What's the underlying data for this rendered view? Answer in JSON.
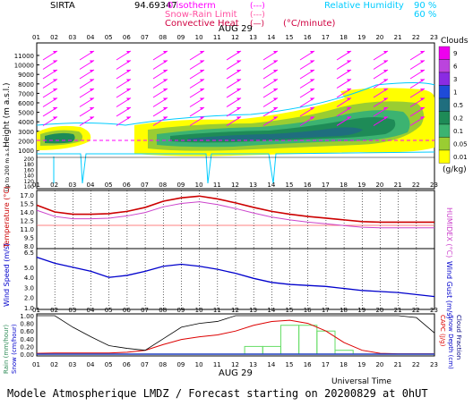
{
  "header": {
    "site": "SIRTA",
    "coords": "94.69347",
    "isotherm_label": "0 isotherm",
    "snow_rain_label": "Snow-Rain Limit",
    "convective_label": "Convective Heat",
    "convective_unit": "(°C/minute)",
    "rh_label": "Relative Humidity",
    "rh_90": "90 %",
    "rh_60": "60 %",
    "dash_mark": "(---)",
    "solid_mark": "(—)"
  },
  "colors": {
    "isotherm": "#ff00ff",
    "snow_rain": "#ff4fa0",
    "convective": "#d00040",
    "rh": "#00ccff",
    "temperature": "#cc0000",
    "humidex": "#cc44cc",
    "wind": "#0000cc",
    "rain": "#2e8b57",
    "capc": "#dd0000",
    "cloud_fraction": "#000080"
  },
  "hour_labels": [
    "01",
    "02",
    "03",
    "04",
    "05",
    "06",
    "07",
    "08",
    "09",
    "10",
    "11",
    "12",
    "13",
    "14",
    "15",
    "16",
    "17",
    "18",
    "19",
    "20",
    "21",
    "22",
    "23"
  ],
  "date_label": "AUG 29",
  "cloud_legend": {
    "title": "Clouds",
    "unit": "(g/kg)",
    "levels": [
      "9",
      "6",
      "3",
      "1",
      "0.5",
      "0.2",
      "0.1",
      "0.05",
      "0.01"
    ],
    "colors": [
      "#ee00ee",
      "#bb44dd",
      "#8a2be2",
      "#1e4bd8",
      "#1f6e7e",
      "#1e8b57",
      "#3cb371",
      "#9acd32",
      "#ffff00"
    ]
  },
  "panels": {
    "height": {
      "ylabel": "Height (m a.s.l.)",
      "ylabel_low": "Up to 200 m a.s.l.",
      "yticks_upper": [
        "11000",
        "10000",
        "9000",
        "8000",
        "7000",
        "6000",
        "5000",
        "4000",
        "3000",
        "2000",
        "1000"
      ],
      "yticks_lower": [
        "200",
        "180",
        "160",
        "140",
        "120",
        "100"
      ]
    },
    "temperature": {
      "ylabel_left": "Temperature (°C)",
      "ylabel_right": "HUMIDEX (°C)",
      "yticks": [
        "17.0",
        "15.5",
        "14.0",
        "12.5",
        "11.0",
        "9.5",
        "8.0"
      ]
    },
    "wind": {
      "ylabel_left": "Wind Speed (m/s)",
      "ylabel_right": "Wind Gust (m/s)",
      "yticks": [
        "6.5",
        "5.0",
        "4.0",
        "3.0",
        "2.0",
        "1.0"
      ]
    },
    "precip": {
      "ylabel_left_1": "Rain (mm/hour)",
      "ylabel_left_2": "Snow (cm/hour)",
      "ylabel_right_1": "CAPC (J/g)",
      "ylabel_right_2": "Snow Depth (cm)",
      "ylabel_right_3": "Cloud Fraction",
      "yticks": [
        "1.00",
        "0.80",
        "0.60",
        "0.40",
        "0.20",
        "0.00"
      ]
    }
  },
  "footer": {
    "universal_time": "Universal Time",
    "model_line": "Modele Atmospherique LMDZ / Forecast starting on 20200829 at 0hUT"
  },
  "chart_data": [
    {
      "type": "line",
      "title": "",
      "series": [
        {
          "name": "Temperature",
          "values": [
            15.2,
            14.0,
            13.6,
            13.6,
            13.7,
            14.1,
            14.8,
            15.9,
            16.5,
            16.8,
            16.3,
            15.6,
            14.8,
            14.1,
            13.6,
            13.2,
            12.9,
            12.6,
            12.3,
            12.2,
            12.2,
            12.2,
            12.2
          ]
        },
        {
          "name": "HUMIDEX",
          "values": [
            14.3,
            13.2,
            12.8,
            12.8,
            12.9,
            13.3,
            13.9,
            14.9,
            15.5,
            15.8,
            15.3,
            14.6,
            13.8,
            13.1,
            12.6,
            12.2,
            11.9,
            11.6,
            11.3,
            11.2,
            11.2,
            11.2,
            11.2
          ]
        }
      ],
      "x": [
        1,
        2,
        3,
        4,
        5,
        6,
        7,
        8,
        9,
        10,
        11,
        12,
        13,
        14,
        15,
        16,
        17,
        18,
        19,
        20,
        21,
        22,
        23
      ],
      "ylim": [
        8.0,
        17.0
      ],
      "ylabel": "Temperature (°C)"
    },
    {
      "type": "line",
      "series": [
        {
          "name": "Wind Speed",
          "values": [
            6.0,
            5.4,
            5.0,
            4.6,
            4.0,
            4.2,
            4.6,
            5.1,
            5.3,
            5.1,
            4.8,
            4.4,
            3.9,
            3.5,
            3.3,
            3.2,
            3.1,
            2.9,
            2.7,
            2.6,
            2.5,
            2.3,
            2.1
          ]
        }
      ],
      "x": [
        1,
        2,
        3,
        4,
        5,
        6,
        7,
        8,
        9,
        10,
        11,
        12,
        13,
        14,
        15,
        16,
        17,
        18,
        19,
        20,
        21,
        22,
        23
      ],
      "ylim": [
        1.0,
        6.5
      ],
      "ylabel": "Wind Speed (m/s)"
    },
    {
      "type": "bar",
      "series": [
        {
          "name": "Rain",
          "values": [
            0,
            0,
            0,
            0,
            0,
            0,
            0,
            0,
            0,
            0,
            0,
            0,
            0.2,
            0.2,
            0.75,
            0.75,
            0.6,
            0.1,
            0.0,
            0,
            0,
            0,
            0
          ]
        },
        {
          "name": "CAPC",
          "values": [
            0.02,
            0.03,
            0.03,
            0.03,
            0.03,
            0.05,
            0.1,
            0.25,
            0.38,
            0.45,
            0.5,
            0.6,
            0.75,
            0.85,
            0.88,
            0.8,
            0.6,
            0.3,
            0.1,
            0.02,
            0.01,
            0.01,
            0.01
          ]
        },
        {
          "name": "Cloud Fraction",
          "values": [
            1.0,
            1.0,
            0.7,
            0.45,
            0.22,
            0.15,
            0.1,
            0.4,
            0.7,
            0.8,
            0.85,
            1.0,
            1.0,
            1.0,
            1.0,
            1.0,
            1.0,
            1.0,
            1.0,
            1.0,
            1.0,
            0.95,
            0.55
          ]
        }
      ],
      "x": [
        1,
        2,
        3,
        4,
        5,
        6,
        7,
        8,
        9,
        10,
        11,
        12,
        13,
        14,
        15,
        16,
        17,
        18,
        19,
        20,
        21,
        22,
        23
      ],
      "ylim": [
        0.0,
        1.0
      ]
    }
  ]
}
